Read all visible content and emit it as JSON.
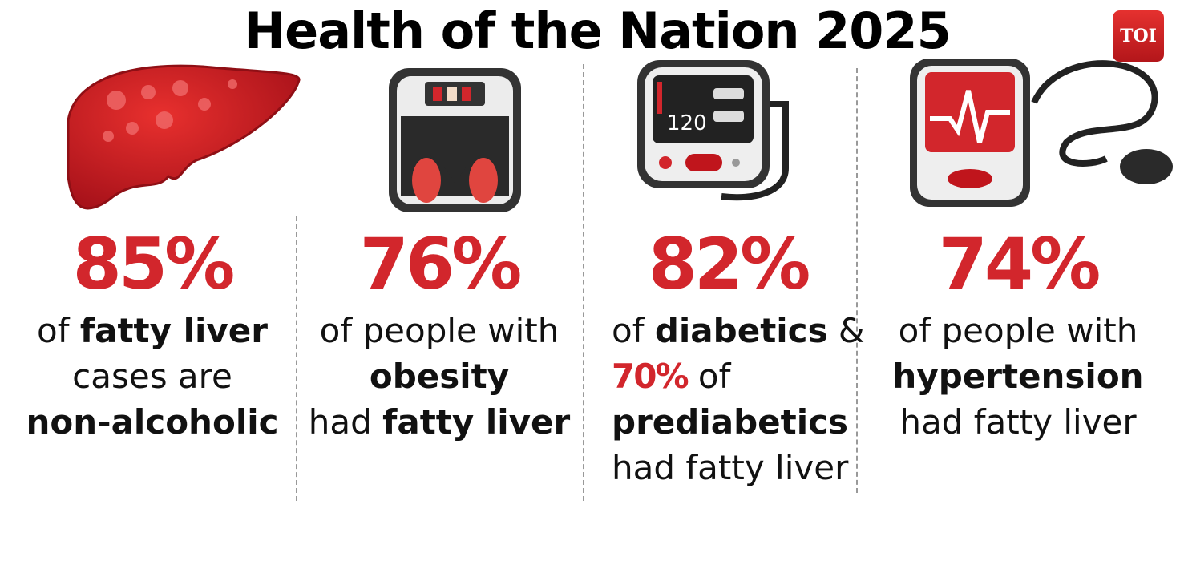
{
  "title": "Health of the Nation 2025",
  "logo": "TOI",
  "stats": [
    {
      "icon": "liver-icon",
      "value": "85%",
      "lines": [
        [
          "of ",
          ""
        ],
        [
          "fatty liver",
          "b"
        ],
        [
          "cases are",
          ""
        ],
        [
          "non-alcoholic",
          "b"
        ]
      ]
    },
    {
      "icon": "weighing-scale-icon",
      "value": "76%",
      "text": {
        "l1": "of people with",
        "l2": "obesity",
        "l3a": "had ",
        "l3b": "fatty liver"
      }
    },
    {
      "icon": "glucometer-icon",
      "value": "82%",
      "text": {
        "l1a": "of ",
        "l1b": "diabetics",
        "l1c": " &",
        "l2a": "70%",
        "l2b": " of",
        "l3": "prediabetics",
        "l4": "had fatty liver"
      },
      "icon_text": "120"
    },
    {
      "icon": "bp-monitor-icon",
      "value": "74%",
      "text": {
        "l1": "of people with",
        "l2": "hypertension",
        "l3": "had fatty liver"
      }
    }
  ],
  "col1": {
    "l1a": "of ",
    "l1b": "fatty liver",
    "l2": "cases are",
    "l3": "non-alcoholic"
  },
  "colors": {
    "accent": "#d2262c"
  }
}
